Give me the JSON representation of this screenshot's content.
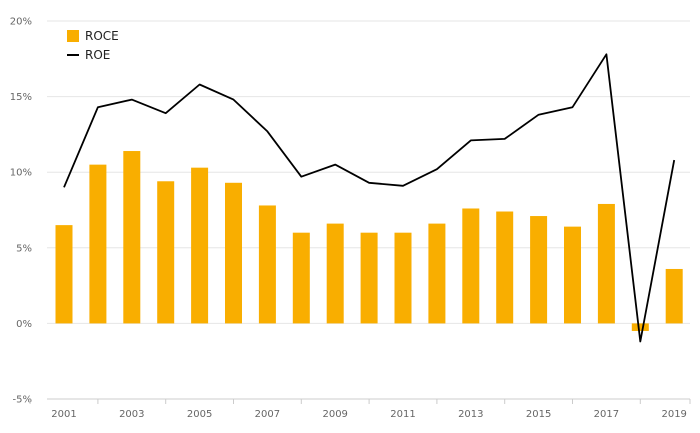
{
  "chart_data": {
    "type": "bar",
    "title": "",
    "xlabel": "",
    "ylabel": "",
    "years": [
      "2001",
      "2002",
      "2003",
      "2004",
      "2005",
      "2006",
      "2007",
      "2008",
      "2009",
      "2010",
      "2011",
      "2012",
      "2013",
      "2014",
      "2015",
      "2016",
      "2017",
      "2018",
      "2019"
    ],
    "x_tick_labels": [
      "2001",
      "2003",
      "2005",
      "2007",
      "2009",
      "2011",
      "2013",
      "2015",
      "2017",
      "2019"
    ],
    "y_ticks": [
      {
        "value": 20,
        "label": "20%"
      },
      {
        "value": 15,
        "label": "15%"
      },
      {
        "value": 10,
        "label": "10%"
      },
      {
        "value": 5,
        "label": "5%"
      },
      {
        "value": 0,
        "label": "0%"
      },
      {
        "value": -5,
        "label": "-5%"
      }
    ],
    "ylim": [
      -5,
      20
    ],
    "grid": true,
    "legend_position": "top-left",
    "series": [
      {
        "name": "ROCE",
        "kind": "bar",
        "color": "#F9AE00",
        "values": [
          6.5,
          10.5,
          11.4,
          9.4,
          10.3,
          9.3,
          7.8,
          6.0,
          6.6,
          6.0,
          6.0,
          6.6,
          7.6,
          7.4,
          7.1,
          6.4,
          7.9,
          -0.5,
          3.6
        ]
      },
      {
        "name": "ROE",
        "kind": "line",
        "color": "#000000",
        "values": [
          9.0,
          14.3,
          14.8,
          13.9,
          15.8,
          14.8,
          12.7,
          9.7,
          10.5,
          9.3,
          9.1,
          10.2,
          12.1,
          12.2,
          13.8,
          14.3,
          17.8,
          -1.2,
          10.8
        ]
      }
    ]
  }
}
